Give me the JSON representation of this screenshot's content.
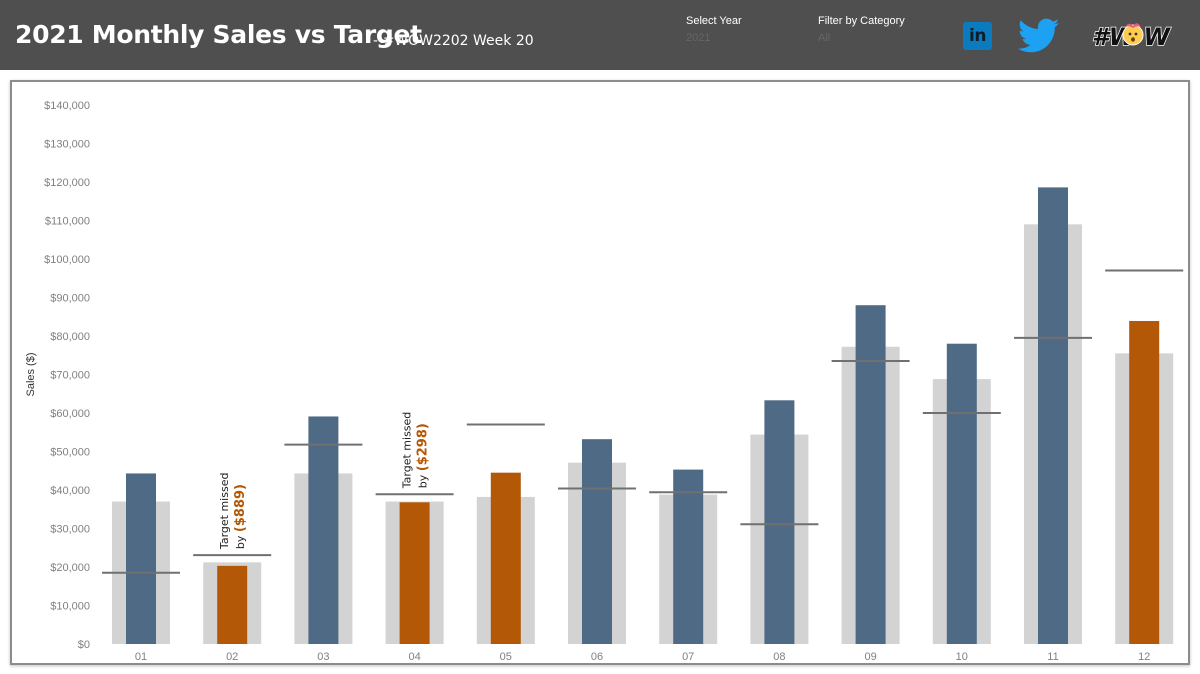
{
  "header": {
    "title": "2021 Monthly Sales vs Target",
    "subtitle": " - #WOW2202 Week 20",
    "year_filter": {
      "label": "Select Year",
      "value": "2021"
    },
    "category_filter": {
      "label": "Filter by Category",
      "value": "All"
    },
    "linkedin_text": "in",
    "wow_text": "#W W"
  },
  "colors": {
    "header_bg": "#4f4f4f",
    "sales_bar": "#4f6a84",
    "missed_bar": "#b35806",
    "prior_year_bar": "#d3d3d3",
    "target_line": "#707070",
    "twitter": "#1da1f2",
    "linkedin": "#0a7bbf"
  },
  "chart_data": {
    "type": "bar",
    "ylabel": "Sales ($)",
    "ylim": [
      0,
      140000
    ],
    "ytick_step": 10000,
    "categories": [
      "01",
      "02",
      "03",
      "04",
      "05",
      "06",
      "07",
      "08",
      "09",
      "10",
      "11",
      "12"
    ],
    "series": [
      {
        "values": [
          44300,
          20300,
          59100,
          36800,
          44500,
          53200,
          45300,
          63300,
          88000,
          78000,
          118600,
          83900
        ]
      },
      {
        "values": [
          37000,
          21200,
          44300,
          37000,
          38200,
          47100,
          38800,
          54400,
          77200,
          68800,
          109000,
          75500
        ]
      },
      {
        "values": [
          18500,
          23100,
          51800,
          38900,
          57000,
          40400,
          39400,
          31100,
          73500,
          60000,
          79500,
          97000
        ]
      }
    ],
    "annotations": [
      {
        "category": "02",
        "text_line1": "Target missed",
        "text_line2": "by",
        "amount": "($889)"
      },
      {
        "category": "04",
        "text_line1": "Target missed",
        "text_line2": "by",
        "amount": "($298)"
      }
    ]
  }
}
